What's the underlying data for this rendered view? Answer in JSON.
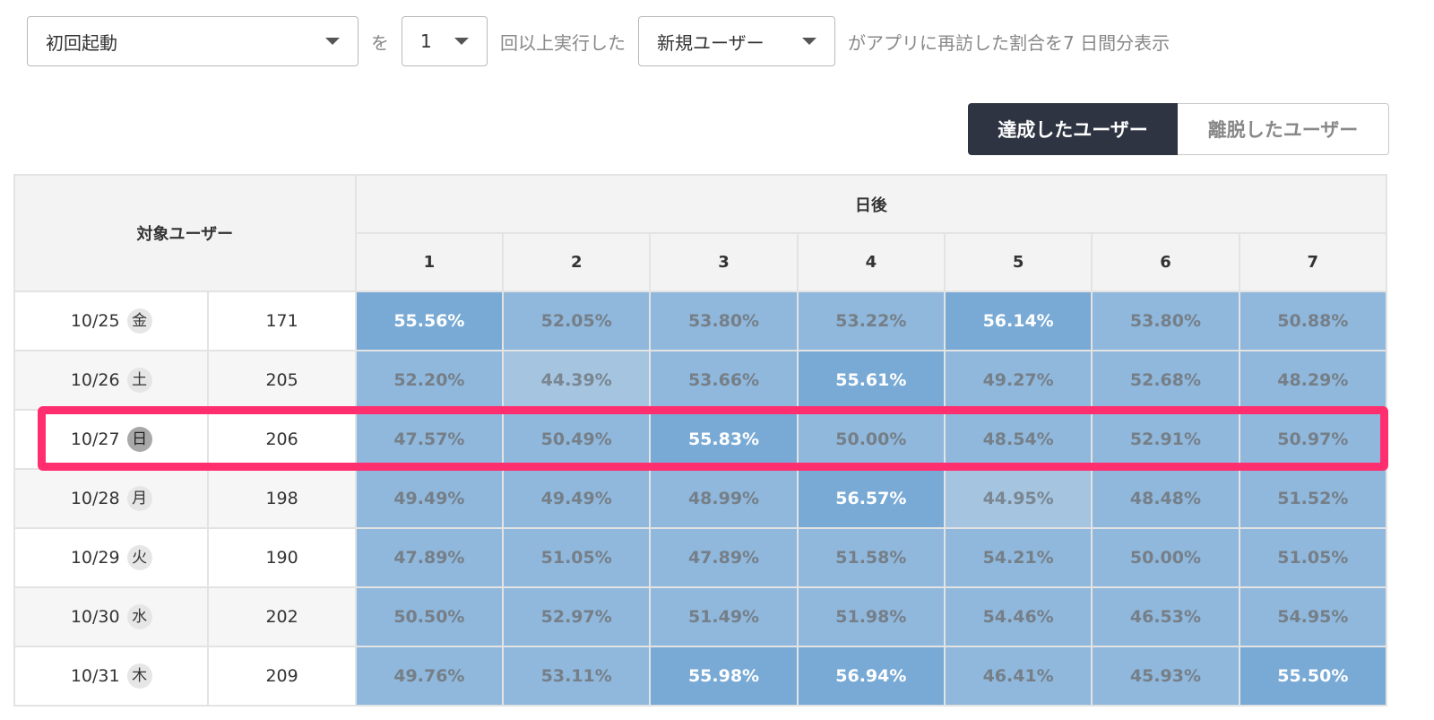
{
  "filters": {
    "event": "初回起動",
    "joiner_1": "を",
    "count": "1",
    "joiner_2": "回以上実行した",
    "user_type": "新規ユーザー",
    "joiner_3": "がアプリに再訪した割合を7 日間分表示"
  },
  "toggle": {
    "achieved": "達成したユーザー",
    "churned": "離脱したユーザー"
  },
  "table": {
    "target_header": "対象ユーザー",
    "days_header": "日後",
    "day_columns": [
      "1",
      "2",
      "3",
      "4",
      "5",
      "6",
      "7"
    ],
    "rows": [
      {
        "date": "10/25",
        "dow": "金",
        "users": "171",
        "rates": [
          "55.56%",
          "52.05%",
          "53.80%",
          "53.22%",
          "56.14%",
          "53.80%",
          "50.88%"
        ],
        "levels": [
          "high",
          "mid",
          "mid",
          "mid",
          "high",
          "mid",
          "mid"
        ]
      },
      {
        "date": "10/26",
        "dow": "土",
        "users": "205",
        "rates": [
          "52.20%",
          "44.39%",
          "53.66%",
          "55.61%",
          "49.27%",
          "52.68%",
          "48.29%"
        ],
        "levels": [
          "mid",
          "low",
          "mid",
          "high",
          "mid",
          "mid",
          "mid"
        ]
      },
      {
        "date": "10/27",
        "dow": "日",
        "users": "206",
        "rates": [
          "47.57%",
          "50.49%",
          "55.83%",
          "50.00%",
          "48.54%",
          "52.91%",
          "50.97%"
        ],
        "levels": [
          "mid",
          "mid",
          "high",
          "mid",
          "mid",
          "mid",
          "mid"
        ]
      },
      {
        "date": "10/28",
        "dow": "月",
        "users": "198",
        "rates": [
          "49.49%",
          "49.49%",
          "48.99%",
          "56.57%",
          "44.95%",
          "48.48%",
          "51.52%"
        ],
        "levels": [
          "mid",
          "mid",
          "mid",
          "high",
          "low",
          "mid",
          "mid"
        ]
      },
      {
        "date": "10/29",
        "dow": "火",
        "users": "190",
        "rates": [
          "47.89%",
          "51.05%",
          "47.89%",
          "51.58%",
          "54.21%",
          "50.00%",
          "51.05%"
        ],
        "levels": [
          "mid",
          "mid",
          "mid",
          "mid",
          "mid",
          "mid",
          "mid"
        ]
      },
      {
        "date": "10/30",
        "dow": "水",
        "users": "202",
        "rates": [
          "50.50%",
          "52.97%",
          "51.49%",
          "51.98%",
          "54.46%",
          "46.53%",
          "54.95%"
        ],
        "levels": [
          "mid",
          "mid",
          "mid",
          "mid",
          "mid",
          "mid",
          "mid"
        ]
      },
      {
        "date": "10/31",
        "dow": "木",
        "users": "209",
        "rates": [
          "49.76%",
          "53.11%",
          "55.98%",
          "56.94%",
          "46.41%",
          "45.93%",
          "55.50%"
        ],
        "levels": [
          "mid",
          "mid",
          "high",
          "high",
          "mid",
          "mid",
          "high"
        ]
      }
    ]
  },
  "highlighted_row": "10/27",
  "colors": {
    "highlight_border": "#ff2e6f",
    "active_toggle": "#2e3441",
    "level_low": "#a4c4e0",
    "level_mid": "#8fb8dc",
    "level_high": "#79aad5"
  }
}
